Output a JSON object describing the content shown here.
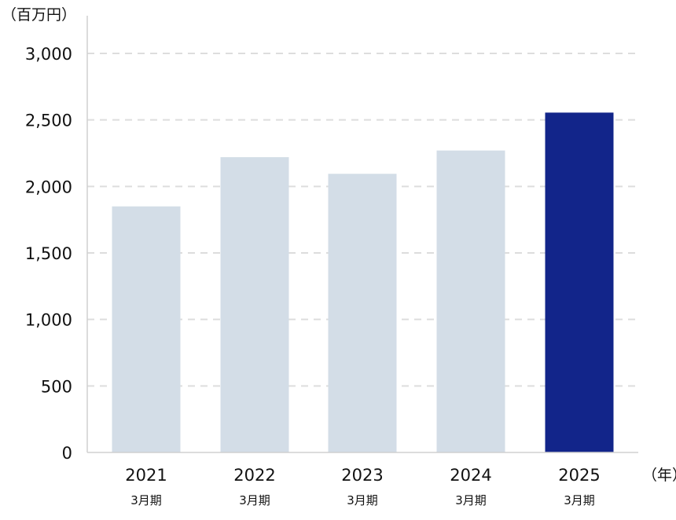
{
  "chart_data": {
    "type": "bar",
    "y_unit_label": "（百万円）",
    "x_unit_label": "（年）",
    "categories": [
      "2021",
      "2022",
      "2023",
      "2024",
      "2025"
    ],
    "category_sublabels": [
      "3月期",
      "3月期",
      "3月期",
      "3月期",
      "3月期"
    ],
    "values": [
      1850,
      2220,
      2095,
      2270,
      2555
    ],
    "ylim": [
      0,
      3000
    ],
    "yticks": [
      0,
      500,
      1000,
      1500,
      2000,
      2500,
      3000
    ],
    "ytick_labels": [
      "0",
      "500",
      "1,000",
      "1,500",
      "2,000",
      "2,500",
      "3,000"
    ],
    "grid": true,
    "colors": {
      "bar": "#d3dde7",
      "highlight_bar": "#12258a",
      "grid": "#dddddd",
      "axis": "#d0d0d0"
    },
    "highlight_index": 4
  }
}
